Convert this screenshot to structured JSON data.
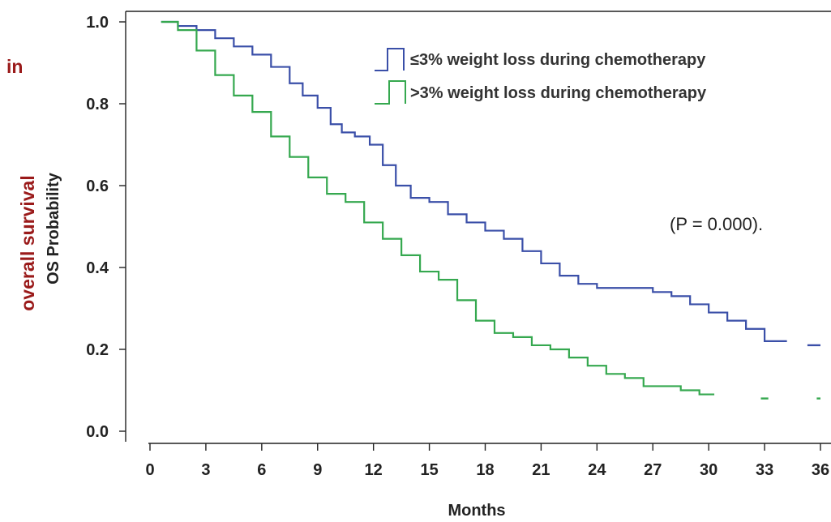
{
  "chart_data": {
    "type": "line",
    "step": true,
    "title": "",
    "xlabel": "Months",
    "ylabel": "OS Probability",
    "ylabel_overlay": "overall survival",
    "corner_text": "in",
    "annotation": "(P = 0.000).",
    "xlim": [
      0,
      36
    ],
    "ylim": [
      0,
      1.0
    ],
    "xticks": [
      "0",
      "3",
      "6",
      "9",
      "12",
      "15",
      "18",
      "21",
      "24",
      "27",
      "30",
      "33",
      "36"
    ],
    "yticks": [
      "0.0",
      "0.2",
      "0.4",
      "0.6",
      "0.8",
      "1.0"
    ],
    "grid": false,
    "legend_position": "top-right",
    "series": [
      {
        "name": "≤3% weight loss during chemotherapy",
        "color": "#3a4fa8",
        "x": [
          0.6,
          1.5,
          2.5,
          3.5,
          4.5,
          5.5,
          6.5,
          7.5,
          8.2,
          9.0,
          9.7,
          10.3,
          11.0,
          11.8,
          12.5,
          13.2,
          14.0,
          15.0,
          16.0,
          17.0,
          18.0,
          19.0,
          20.0,
          21.0,
          22.0,
          23.0,
          24.0,
          25.0,
          26.0,
          27.0,
          28.0,
          29.0,
          30.0,
          31.0,
          32.0,
          33.0,
          34.2
        ],
        "y": [
          1.0,
          0.99,
          0.98,
          0.96,
          0.94,
          0.92,
          0.89,
          0.85,
          0.82,
          0.79,
          0.75,
          0.73,
          0.72,
          0.7,
          0.65,
          0.6,
          0.57,
          0.56,
          0.53,
          0.51,
          0.49,
          0.47,
          0.44,
          0.41,
          0.38,
          0.36,
          0.35,
          0.35,
          0.35,
          0.34,
          0.33,
          0.31,
          0.29,
          0.27,
          0.25,
          0.22,
          0.22
        ],
        "tail": [
          [
            35.3,
            0.21
          ],
          [
            36.0,
            0.21
          ]
        ]
      },
      {
        "name": ">3% weight loss during chemotherapy",
        "color": "#35a84f",
        "x": [
          0.6,
          1.5,
          2.5,
          3.5,
          4.5,
          5.5,
          6.5,
          7.5,
          8.5,
          9.5,
          10.5,
          11.5,
          12.5,
          13.5,
          14.5,
          15.5,
          16.5,
          17.5,
          18.5,
          19.5,
          20.5,
          21.5,
          22.5,
          23.5,
          24.5,
          25.5,
          26.5,
          27.5,
          28.5,
          29.5,
          30.3
        ],
        "y": [
          1.0,
          0.98,
          0.93,
          0.87,
          0.82,
          0.78,
          0.72,
          0.67,
          0.62,
          0.58,
          0.56,
          0.51,
          0.47,
          0.43,
          0.39,
          0.37,
          0.32,
          0.27,
          0.24,
          0.23,
          0.21,
          0.2,
          0.18,
          0.16,
          0.14,
          0.13,
          0.11,
          0.11,
          0.1,
          0.09,
          0.09
        ],
        "tail": [
          [
            32.8,
            0.08
          ],
          [
            33.2,
            0.08
          ],
          [
            35.8,
            0.08
          ],
          [
            36.0,
            0.08
          ]
        ]
      }
    ]
  }
}
